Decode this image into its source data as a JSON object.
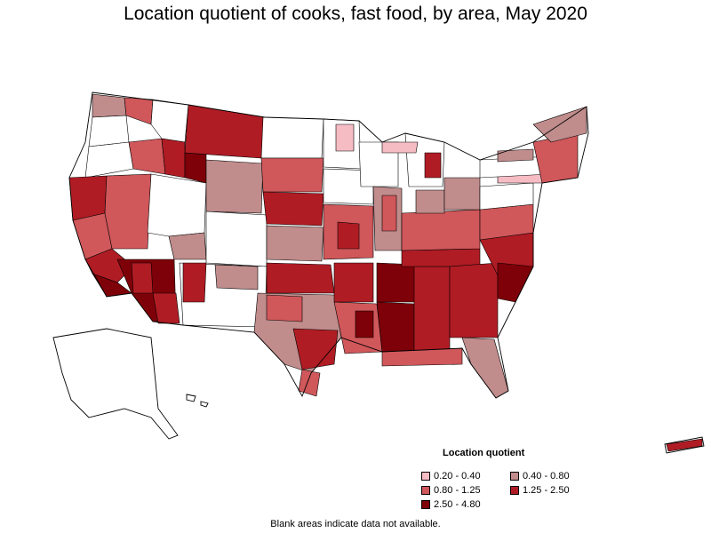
{
  "title": "Location quotient of cooks, fast food, by area, May 2020",
  "legend": {
    "title": "Location quotient",
    "items": [
      {
        "label": "0.20 - 0.40",
        "color": "#f6bcc4"
      },
      {
        "label": "0.40 - 0.80",
        "color": "#c08c8c"
      },
      {
        "label": "0.80 - 1.25",
        "color": "#d0575a"
      },
      {
        "label": "1.25 - 2.50",
        "color": "#b01c24"
      },
      {
        "label": "2.50 - 4.80",
        "color": "#7e0008"
      }
    ]
  },
  "note": "Blank areas indicate data not available."
}
